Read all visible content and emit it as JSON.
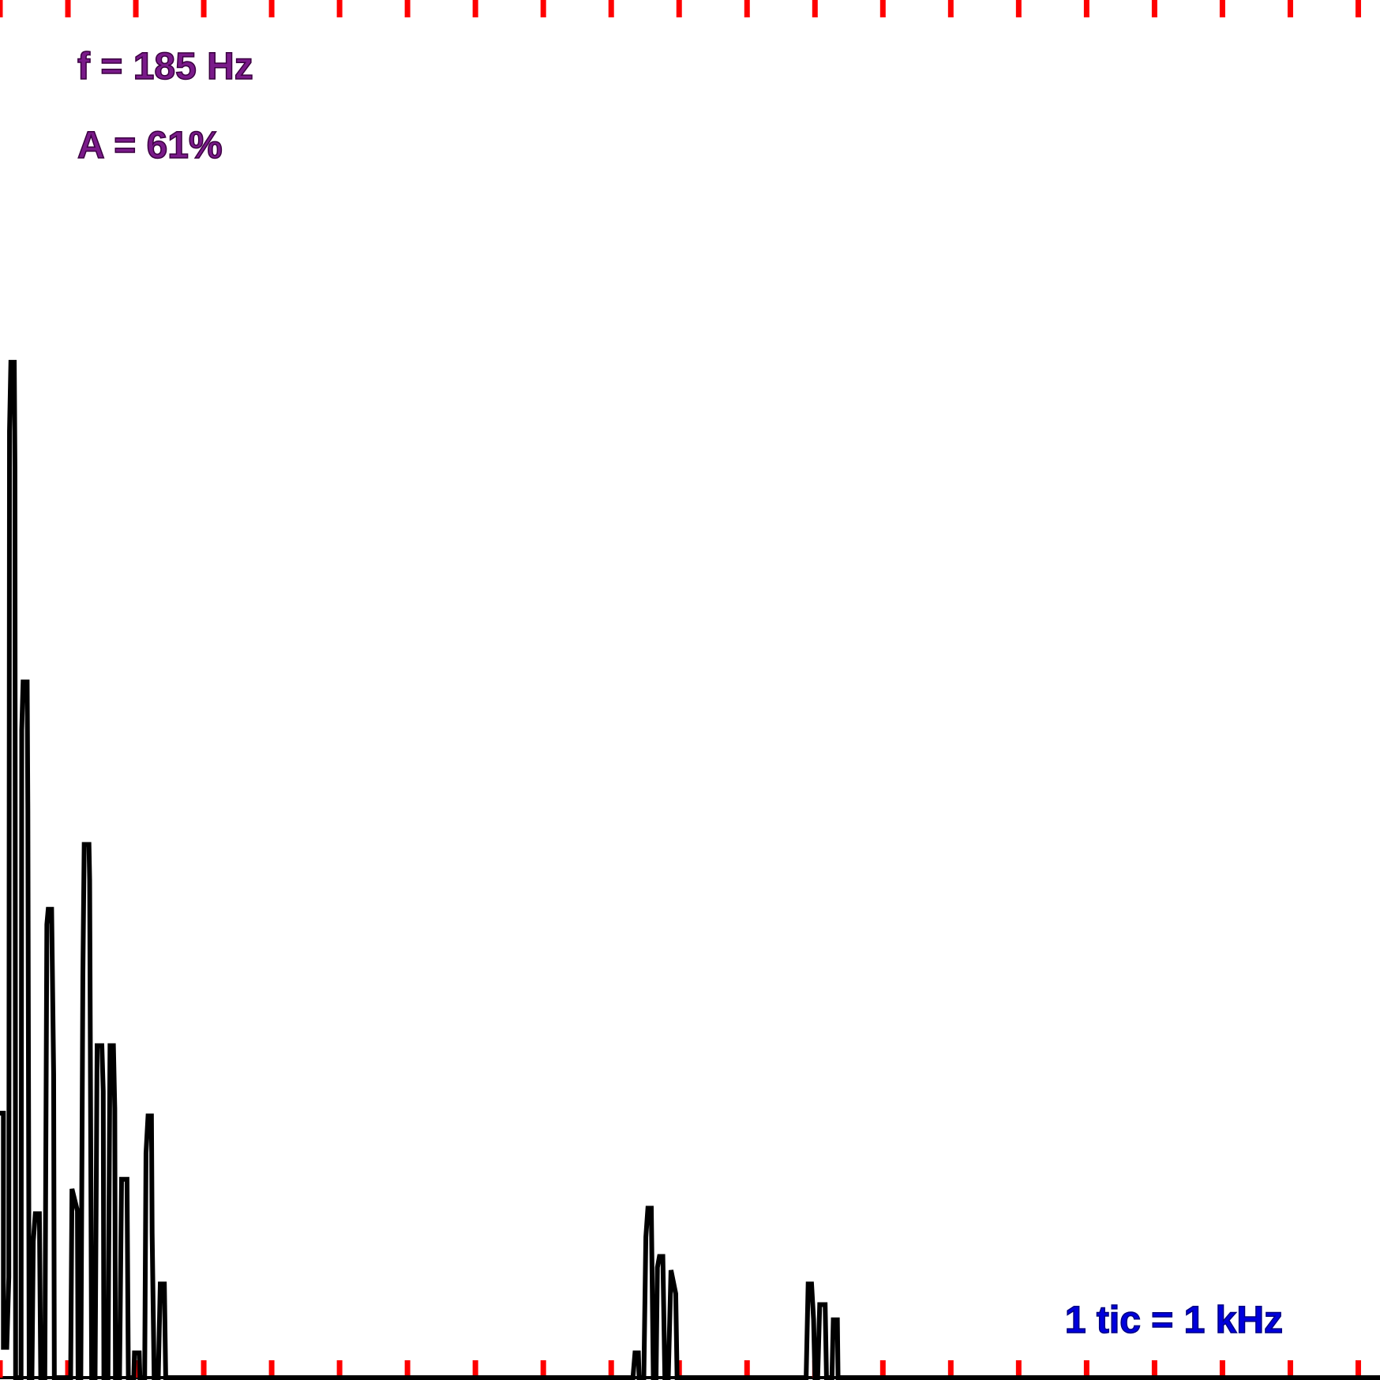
{
  "chart_data": {
    "type": "line",
    "annotations": [
      "f = 185 Hz",
      "A = 61%",
      "1 tic = 1 kHz"
    ],
    "x": [
      0,
      0.05,
      0.05,
      0.1,
      0.13,
      0.14,
      0.16,
      0.21,
      0.22,
      0.23,
      0.31,
      0.32,
      0.34,
      0.4,
      0.41,
      0.43,
      0.47,
      0.49,
      0.52,
      0.58,
      0.6,
      0.66,
      0.69,
      0.71,
      0.76,
      0.79,
      0.8,
      1.04,
      1.06,
      1.14,
      1.15,
      1.19,
      1.22,
      1.24,
      1.31,
      1.32,
      1.35,
      1.4,
      1.43,
      1.5,
      1.52,
      1.53,
      1.59,
      1.62,
      1.67,
      1.69,
      1.7,
      1.76,
      1.79,
      1.87,
      1.89,
      1.97,
      1.98,
      2.05,
      2.06,
      2.13,
      2.15,
      2.18,
      2.23,
      2.24,
      2.27,
      2.33,
      2.36,
      2.42,
      2.44,
      9.32,
      9.35,
      9.4,
      9.41,
      9.48,
      9.51,
      9.54,
      9.59,
      9.62,
      9.66,
      9.68,
      9.71,
      9.76,
      9.79,
      9.84,
      9.88,
      9.95,
      9.97,
      11.87,
      11.9,
      11.95,
      11.98,
      12.0,
      12.04,
      12.07,
      12.15,
      12.17,
      12.25,
      12.27,
      12.33,
      12.34,
      20.32
    ],
    "series": [
      {
        "color": "#000000",
        "values": [
          19.2,
          19.2,
          2.2,
          2.2,
          7.3,
          68.7,
          73.7,
          73.7,
          66.1,
          0,
          0,
          47.0,
          50.5,
          50.5,
          41.2,
          0,
          0,
          9.9,
          11.9,
          11.9,
          0,
          0,
          32.9,
          34.0,
          34.0,
          22.0,
          0,
          0,
          13.7,
          12.1,
          0,
          0,
          29.1,
          38.7,
          38.7,
          36.1,
          0,
          0,
          24.1,
          24.1,
          20.8,
          0,
          0,
          24.1,
          24.1,
          19.5,
          0,
          0,
          14.4,
          14.4,
          0,
          0,
          1.8,
          1.8,
          0,
          0,
          16.3,
          19.0,
          19.0,
          10.5,
          0,
          0,
          6.8,
          6.8,
          0,
          0,
          1.8,
          1.8,
          0,
          0,
          10.2,
          12.3,
          12.3,
          0,
          0,
          8.0,
          8.8,
          8.8,
          0,
          0,
          7.8,
          6.1,
          0,
          0,
          6.8,
          6.8,
          4.2,
          0,
          0,
          5.3,
          5.3,
          0,
          0,
          4.2,
          4.2,
          0,
          0
        ]
      }
    ],
    "xlim": [
      0,
      20.32
    ],
    "ylim": [
      0,
      100
    ],
    "xticks": [
      0,
      1,
      2,
      3,
      4,
      5,
      6,
      7,
      8,
      9,
      10,
      11,
      12,
      13,
      14,
      15,
      16,
      17,
      18,
      19,
      20
    ],
    "tick_color": "#ff0000"
  }
}
